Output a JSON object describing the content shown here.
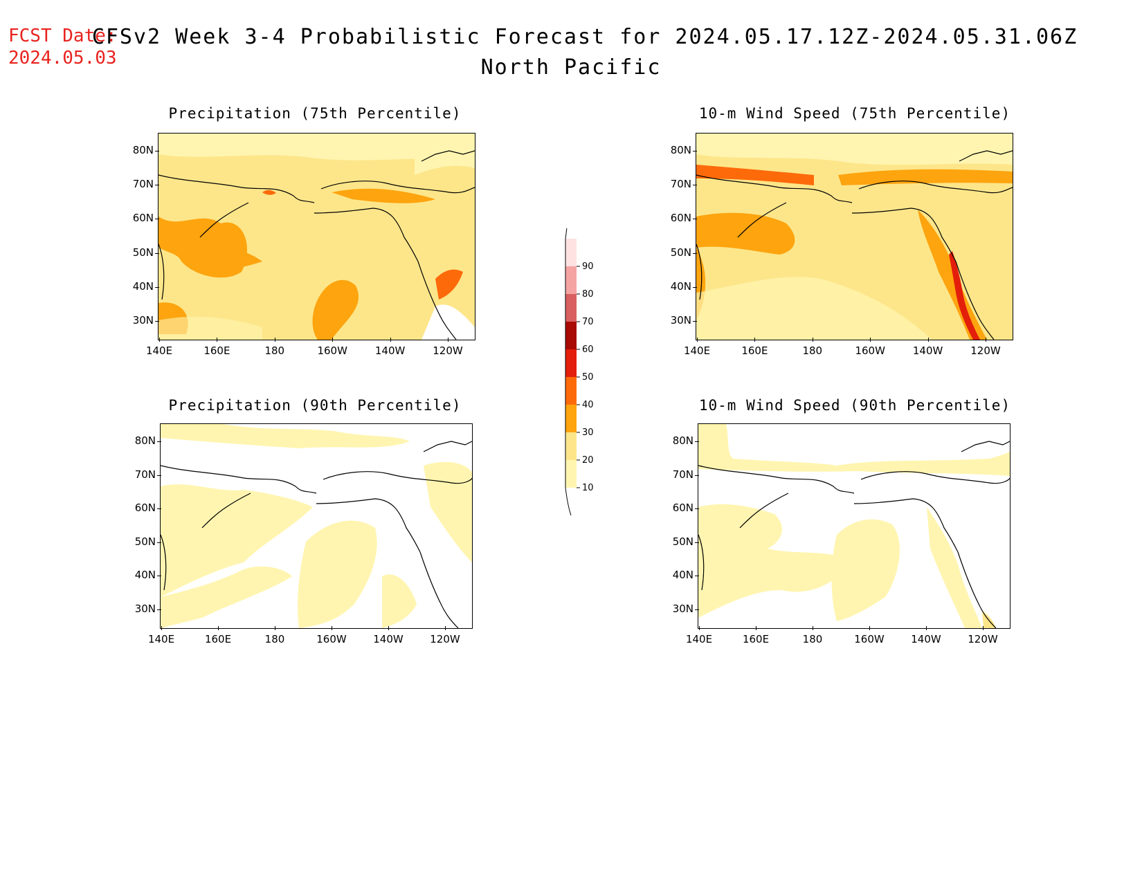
{
  "header": {
    "fcst_label": "FCST Date:",
    "fcst_date": "2024.05.03",
    "title": "CFSv2 Week 3-4 Probabilistic Forecast for 2024.05.17.12Z-2024.05.31.06Z",
    "subtitle": "North Pacific"
  },
  "axes": {
    "lat_labels": [
      "80N",
      "70N",
      "60N",
      "50N",
      "40N",
      "30N"
    ],
    "lon_labels": [
      "140E",
      "160E",
      "180",
      "160W",
      "140W",
      "120W"
    ]
  },
  "panels": [
    {
      "id": "precip75",
      "title": "Precipitation (75th Percentile)"
    },
    {
      "id": "wind75",
      "title": "10-m Wind Speed (75th Percentile)"
    },
    {
      "id": "precip90",
      "title": "Precipitation (90th Percentile)"
    },
    {
      "id": "wind90",
      "title": "10-m Wind Speed (90th Percentile)"
    }
  ],
  "colorbar": {
    "levels": [
      "10",
      "20",
      "30",
      "40",
      "50",
      "60",
      "70",
      "80",
      "90"
    ],
    "colors": [
      "#fff5b0",
      "#fde68a",
      "#fda40f",
      "#fd6a0a",
      "#e31e0a",
      "#a90a04",
      "#d86060",
      "#f5a3a3",
      "#fde2e2"
    ]
  }
}
